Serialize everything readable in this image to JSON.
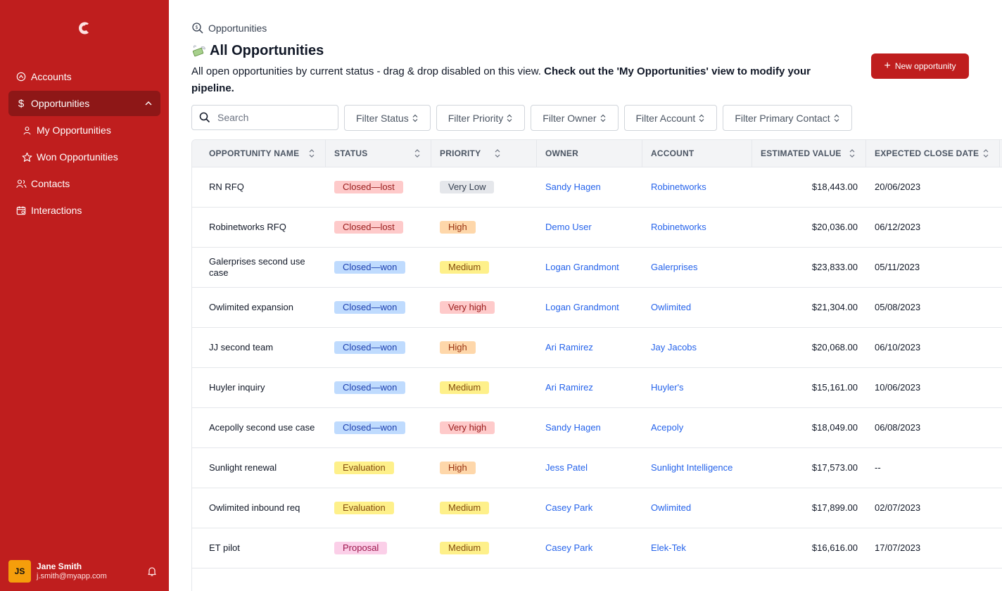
{
  "sidebar": {
    "bg": "#bf1e1e",
    "items": [
      {
        "label": "Accounts",
        "icon": "account-circle-icon"
      },
      {
        "label": "Opportunities",
        "icon": "dollar-icon"
      },
      {
        "label": "My Opportunities",
        "icon": "user-icon"
      },
      {
        "label": "Won Opportunities",
        "icon": "star-icon"
      },
      {
        "label": "Contacts",
        "icon": "users-icon"
      },
      {
        "label": "Interactions",
        "icon": "calendar-icon"
      }
    ],
    "user": {
      "initials": "JS",
      "name": "Jane Smith",
      "email": "j.smith@myapp.com"
    }
  },
  "header": {
    "breadcrumb": "Opportunities",
    "title": "All Opportunities",
    "description_plain": "All open opportunities by current status - drag & drop disabled on this view. ",
    "description_bold": "Check out the 'My Opportunities' view to modify your pipeline.",
    "new_button": "New opportunity"
  },
  "filters": {
    "search_placeholder": "Search",
    "items": [
      "Filter Status",
      "Filter Priority",
      "Filter Owner",
      "Filter Account",
      "Filter Primary Contact"
    ]
  },
  "table": {
    "columns": [
      "OPPORTUNITY NAME",
      "STATUS",
      "PRIORITY",
      "OWNER",
      "ACCOUNT",
      "ESTIMATED VALUE",
      "EXPECTED CLOSE DATE"
    ],
    "rows": [
      {
        "name": "RN RFQ",
        "status": "Closed—lost",
        "priority": "Very Low",
        "owner": "Sandy Hagen",
        "account": "Robinetworks",
        "value": "$18,443.00",
        "date": "20/06/2023"
      },
      {
        "name": "Robinetworks RFQ",
        "status": "Closed—lost",
        "priority": "High",
        "owner": "Demo User",
        "account": "Robinetworks",
        "value": "$20,036.00",
        "date": "06/12/2023"
      },
      {
        "name": "Galerprises second use case",
        "status": "Closed—won",
        "priority": "Medium",
        "owner": "Logan Grandmont",
        "account": "Galerprises",
        "value": "$23,833.00",
        "date": "05/11/2023"
      },
      {
        "name": "Owlimited expansion",
        "status": "Closed—won",
        "priority": "Very high",
        "owner": "Logan Grandmont",
        "account": "Owlimited",
        "value": "$21,304.00",
        "date": "05/08/2023"
      },
      {
        "name": "JJ second team",
        "status": "Closed—won",
        "priority": "High",
        "owner": "Ari Ramirez",
        "account": "Jay Jacobs",
        "value": "$20,068.00",
        "date": "06/10/2023"
      },
      {
        "name": "Huyler inquiry",
        "status": "Closed—won",
        "priority": "Medium",
        "owner": "Ari Ramirez",
        "account": "Huyler's",
        "value": "$15,161.00",
        "date": "10/06/2023"
      },
      {
        "name": "Acepolly second use case",
        "status": "Closed—won",
        "priority": "Very high",
        "owner": "Sandy Hagen",
        "account": "Acepoly",
        "value": "$18,049.00",
        "date": "06/08/2023"
      },
      {
        "name": "Sunlight renewal",
        "status": "Evaluation",
        "priority": "High",
        "owner": "Jess Patel",
        "account": "Sunlight Intelligence",
        "value": "$17,573.00",
        "date": "--"
      },
      {
        "name": "Owlimited inbound req",
        "status": "Evaluation",
        "priority": "Medium",
        "owner": "Casey Park",
        "account": "Owlimited",
        "value": "$17,899.00",
        "date": "02/07/2023"
      },
      {
        "name": "ET pilot",
        "status": "Proposal",
        "priority": "Medium",
        "owner": "Casey Park",
        "account": "Elek-Tek",
        "value": "$16,616.00",
        "date": "17/07/2023"
      }
    ]
  },
  "badge_colors": {
    "Closed—lost": {
      "bg": "#fecaca",
      "fg": "#991b1b"
    },
    "Closed—won": {
      "bg": "#bfdbfe",
      "fg": "#1e40af"
    },
    "Evaluation": {
      "bg": "#fef08a",
      "fg": "#854d0e"
    },
    "Proposal": {
      "bg": "#fbcfe8",
      "fg": "#9d174d"
    },
    "Very Low": {
      "bg": "#e5e7eb",
      "fg": "#374151"
    },
    "High": {
      "bg": "#fed7aa",
      "fg": "#9a3412"
    },
    "Medium": {
      "bg": "#fef08a",
      "fg": "#854d0e"
    },
    "Very high": {
      "bg": "#fecaca",
      "fg": "#991b1b"
    }
  }
}
